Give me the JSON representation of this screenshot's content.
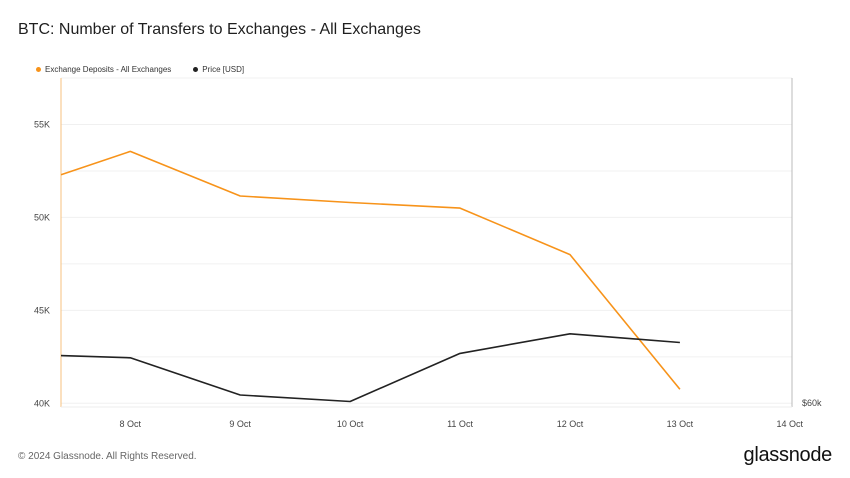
{
  "header": {
    "title": "BTC: Number of Transfers to Exchanges - All Exchanges"
  },
  "legend": [
    {
      "label": "Exchange Deposits - All Exchanges",
      "color": "#f7931a"
    },
    {
      "label": "Price [USD]",
      "color": "#222222"
    }
  ],
  "chart_data": {
    "type": "line",
    "title": "BTC: Number of Transfers to Exchanges - All Exchanges",
    "x_ticks": [
      "8 Oct",
      "9 Oct",
      "10 Oct",
      "11 Oct",
      "12 Oct",
      "13 Oct",
      "14 Oct"
    ],
    "y_left_ticks": [
      {
        "value": 40000,
        "label": "40K"
      },
      {
        "value": 45000,
        "label": "45K"
      },
      {
        "value": 50000,
        "label": "50K"
      },
      {
        "value": 55000,
        "label": "55K"
      }
    ],
    "y_right_label": "$60k",
    "ylim": [
      39800,
      57500
    ],
    "series": [
      {
        "name": "Exchange Deposits - All Exchanges",
        "color": "#f7931a",
        "axis": "left",
        "x": [
          7.37,
          8.0,
          9.0,
          10.0,
          11.0,
          12.0,
          13.0
        ],
        "values": [
          52300,
          53550,
          51150,
          50800,
          50500,
          48000,
          40750
        ]
      },
      {
        "name": "Price [USD]",
        "color": "#222222",
        "axis": "right",
        "x": [
          7.37,
          8.0,
          9.0,
          10.0,
          11.0,
          12.0,
          13.0
        ],
        "values": [
          62300,
          62200,
          60500,
          60200,
          62400,
          63300,
          62900
        ]
      }
    ],
    "price_axis_range": [
      59950,
      75000
    ],
    "grid": true,
    "legend_position": "top-left"
  },
  "footer": {
    "copyright": "© 2024 Glassnode. All Rights Reserved.",
    "brand": "glassnode"
  }
}
